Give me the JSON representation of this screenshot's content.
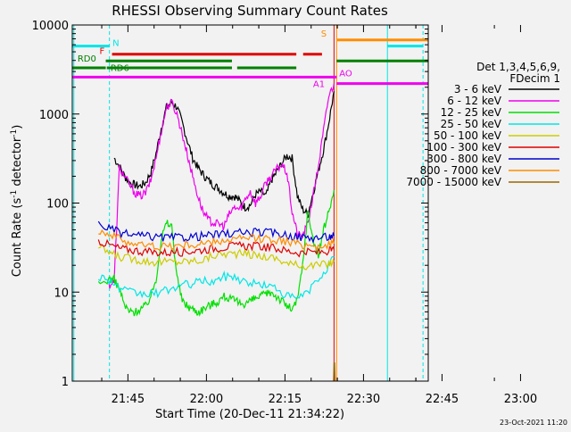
{
  "colors": {
    "background": "#f2f2f2",
    "axis": "#000000",
    "s_3_6": "#000000",
    "s_6_12": "#ee00ee",
    "s_12_25": "#00e000",
    "s_25_50": "#00e6e6",
    "s_50_100": "#cccc00",
    "s_100_300": "#e00000",
    "s_300_800": "#0000d0",
    "s_800_7000": "#ff8c00",
    "s_7000_15000": "#996600",
    "n_bar": "#00e6e6",
    "f_bar": "#e00000",
    "rd_bar": "#008000",
    "ao_bar": "#ee00ee",
    "s_bar": "#ff8c00"
  },
  "chart_data": {
    "type": "line",
    "title": "RHESSI Observing Summary Count Rates",
    "xlabel": "Start Time (20-Dec-11 21:34:22)",
    "ylabel_main": "Count Rate (s",
    "ylabel_sup1": "-1",
    "ylabel_mid": " detector",
    "ylabel_sup2": "-1",
    "ylabel_end": ")",
    "footer_date": "23-Oct-2021 11:20",
    "x_unit": "minutes after 21:34:22",
    "xlim": [
      0,
      68
    ],
    "ylim": [
      1,
      10000
    ],
    "yscale": "log",
    "x_ticks": [
      "21:45",
      "22:00",
      "22:15",
      "22:30",
      "22:45",
      "23:00"
    ],
    "y_ticks": [
      "1",
      "10",
      "100",
      "1000",
      "10000"
    ],
    "legend": {
      "header": [
        "Det 1,3,4,5,6,9,",
        "FDecim 1"
      ],
      "entries": [
        {
          "label": "3 - 6 keV",
          "color": "#000000"
        },
        {
          "label": "6 - 12 keV",
          "color": "#ee00ee"
        },
        {
          "label": "12 - 25 keV",
          "color": "#00e000"
        },
        {
          "label": "25 - 50 keV",
          "color": "#00e6e6"
        },
        {
          "label": "50 - 100 keV",
          "color": "#cccc00"
        },
        {
          "label": "100 - 300 keV",
          "color": "#e00000"
        },
        {
          "label": "300 - 800 keV",
          "color": "#0000d0"
        },
        {
          "label": "800 - 7000 keV",
          "color": "#ff8c00"
        },
        {
          "label": "7000 - 15000 keV",
          "color": "#996600"
        }
      ]
    },
    "flag_labels": {
      "N": "N",
      "F": "F",
      "RD0": "RD0",
      "RD6": "RD6",
      "AO": "AO",
      "A1": "A1",
      "S": "S"
    },
    "flags": [
      {
        "name": "N",
        "color": "#00e6e6",
        "level": 5800,
        "segments": [
          [
            0,
            7.1
          ],
          [
            60.2,
            67
          ]
        ]
      },
      {
        "name": "F",
        "color": "#e00000",
        "level": 4700,
        "segments": [
          [
            7.6,
            42.8
          ],
          [
            44.1,
            47.7
          ]
        ]
      },
      {
        "name": "RD0",
        "color": "#008000",
        "level": 3300,
        "segments": [
          [
            0,
            6.4
          ]
        ]
      },
      {
        "name": "RD",
        "color": "#008000",
        "level": 3950,
        "segments": [
          [
            6.4,
            30.5
          ],
          [
            50.5,
            68
          ]
        ]
      },
      {
        "name": "RD6",
        "color": "#008000",
        "level": 3300,
        "segments": [
          [
            6.6,
            30.5
          ],
          [
            31.5,
            42.8
          ]
        ]
      },
      {
        "name": "AO",
        "color": "#ee00ee",
        "level": 2600,
        "segments": [
          [
            0,
            50.5
          ]
        ]
      },
      {
        "name": "AO2",
        "color": "#ee00ee",
        "level": 2200,
        "segments": [
          [
            50.5,
            68
          ]
        ]
      },
      {
        "name": "S",
        "color": "#ff8c00",
        "level": 6800,
        "segments": [
          [
            50.6,
            68
          ]
        ]
      }
    ],
    "vlines": [
      {
        "x": 7.1,
        "color": "#00e6e6",
        "dash": true
      },
      {
        "x": 60.2,
        "color": "#00e6e6",
        "dash": false
      },
      {
        "x": 67.0,
        "color": "#00e6e6",
        "dash": true
      },
      {
        "x": 0.3,
        "color": "#00e6e6",
        "dash": false
      },
      {
        "x": 50.5,
        "color": "#ff8c00",
        "dash": false
      },
      {
        "x": 50.0,
        "color": "#e00000",
        "dash": false
      }
    ],
    "series": [
      {
        "name": "3 - 6 keV",
        "color": "#000000",
        "x": [
          8,
          9,
          10,
          11,
          12,
          13,
          14,
          15,
          16,
          17,
          18,
          19,
          20,
          21,
          22,
          23,
          24,
          25,
          26,
          27,
          28,
          29,
          30,
          31,
          32,
          33,
          34,
          35,
          36,
          37,
          38,
          39,
          40,
          41,
          42,
          43,
          44,
          45,
          46,
          47,
          48,
          49,
          50
        ],
        "y": [
          320,
          260,
          200,
          170,
          160,
          155,
          170,
          220,
          360,
          700,
          1200,
          1350,
          1200,
          800,
          500,
          320,
          250,
          210,
          180,
          160,
          145,
          130,
          120,
          120,
          105,
          90,
          95,
          125,
          135,
          120,
          180,
          220,
          280,
          340,
          320,
          120,
          85,
          75,
          130,
          230,
          400,
          800,
          1800
        ]
      },
      {
        "name": "6 - 12 keV",
        "color": "#ee00ee",
        "x": [
          7,
          8,
          9,
          10,
          11,
          12,
          13,
          14,
          15,
          16,
          17,
          18,
          19,
          20,
          21,
          22,
          23,
          24,
          25,
          26,
          27,
          28,
          29,
          30,
          31,
          32,
          33,
          34,
          35,
          36,
          37,
          38,
          39,
          40,
          41,
          42,
          43,
          44,
          45,
          46,
          47,
          48,
          49,
          50
        ],
        "y": [
          12,
          13,
          250,
          200,
          160,
          130,
          120,
          130,
          180,
          320,
          650,
          1200,
          1350,
          1000,
          600,
          350,
          200,
          120,
          80,
          65,
          60,
          58,
          55,
          75,
          90,
          85,
          110,
          135,
          100,
          120,
          170,
          200,
          240,
          270,
          220,
          80,
          45,
          42,
          60,
          120,
          260,
          650,
          1600,
          2200
        ]
      },
      {
        "name": "12 - 25 keV",
        "color": "#00e000",
        "x": [
          5,
          7,
          8,
          9,
          10,
          11,
          12,
          13,
          14,
          15,
          16,
          17,
          18,
          19,
          20,
          21,
          22,
          23,
          24,
          25,
          26,
          27,
          28,
          29,
          30,
          31,
          32,
          33,
          34,
          35,
          36,
          37,
          38,
          39,
          40,
          41,
          42,
          43,
          44,
          45,
          46,
          47,
          48,
          49,
          50
        ],
        "y": [
          12,
          14,
          14,
          11,
          7,
          6,
          6,
          6.5,
          7,
          9,
          14,
          40,
          60,
          55,
          15,
          8,
          7,
          6.5,
          6,
          6.5,
          7,
          7.5,
          8,
          9,
          8.5,
          8,
          7.5,
          7.5,
          8,
          8.5,
          9,
          9.5,
          10,
          9,
          8,
          7,
          6.5,
          8,
          20,
          80,
          40,
          25,
          50,
          80,
          140
        ]
      },
      {
        "name": "25 - 50 keV",
        "color": "#00e6e6",
        "x": [
          5,
          7,
          9,
          11,
          13,
          15,
          17,
          19,
          21,
          23,
          25,
          27,
          29,
          31,
          33,
          35,
          37,
          39,
          41,
          43,
          45,
          47,
          49,
          50
        ],
        "y": [
          15,
          14,
          11,
          10,
          9.5,
          9.5,
          10,
          11,
          12,
          12.5,
          13.5,
          13,
          15,
          15,
          13,
          12.5,
          12,
          11,
          9,
          8.5,
          10,
          14,
          20,
          25
        ]
      },
      {
        "name": "50 - 100 keV",
        "color": "#cccc00",
        "x": [
          5,
          7,
          9,
          11,
          13,
          15,
          17,
          19,
          21,
          23,
          25,
          27,
          29,
          31,
          33,
          35,
          37,
          39,
          41,
          43,
          45,
          47,
          49,
          50
        ],
        "y": [
          32,
          28,
          25,
          24,
          23,
          22,
          22,
          22,
          22,
          22.5,
          23,
          26,
          27,
          27,
          27,
          26,
          25,
          24,
          21,
          20,
          20,
          20,
          21,
          22
        ]
      },
      {
        "name": "100 - 300 keV",
        "color": "#e00000",
        "x": [
          5,
          7,
          9,
          11,
          13,
          15,
          17,
          19,
          21,
          23,
          25,
          27,
          29,
          31,
          33,
          35,
          37,
          39,
          41,
          43,
          45,
          47,
          49,
          50
        ],
        "y": [
          38,
          34,
          31,
          30,
          29,
          28,
          28,
          28,
          28.5,
          29,
          30,
          31,
          32,
          33,
          33,
          33,
          32,
          31,
          29,
          28,
          28,
          28,
          29,
          30
        ]
      },
      {
        "name": "300 - 800 keV",
        "color": "#0000d0",
        "x": [
          5,
          7,
          9,
          11,
          13,
          15,
          17,
          19,
          21,
          23,
          25,
          27,
          29,
          31,
          33,
          35,
          37,
          39,
          41,
          43,
          45,
          47,
          49,
          50
        ],
        "y": [
          58,
          52,
          47,
          44,
          43,
          42,
          41,
          41,
          41.5,
          42,
          43,
          44,
          45,
          46,
          47,
          47,
          47,
          46,
          44,
          42,
          41,
          41,
          42,
          43
        ]
      },
      {
        "name": "800 - 7000 keV",
        "color": "#ff8c00",
        "x": [
          5,
          7,
          9,
          11,
          13,
          15,
          17,
          19,
          21,
          23,
          25,
          27,
          29,
          31,
          33,
          35,
          37,
          39,
          41,
          43,
          45,
          47,
          49,
          50
        ],
        "y": [
          50,
          45,
          40,
          36,
          34,
          33,
          33,
          33,
          33.5,
          34,
          35,
          36,
          38,
          39,
          40,
          40,
          40,
          39,
          37,
          35,
          34,
          33,
          34,
          35
        ]
      },
      {
        "name": "7000 - 15000 keV",
        "color": "#996600",
        "x": [
          49.9,
          50.0,
          50.1,
          50.2
        ],
        "y": [
          1.0,
          1.6,
          1.6,
          1.0
        ]
      }
    ]
  }
}
